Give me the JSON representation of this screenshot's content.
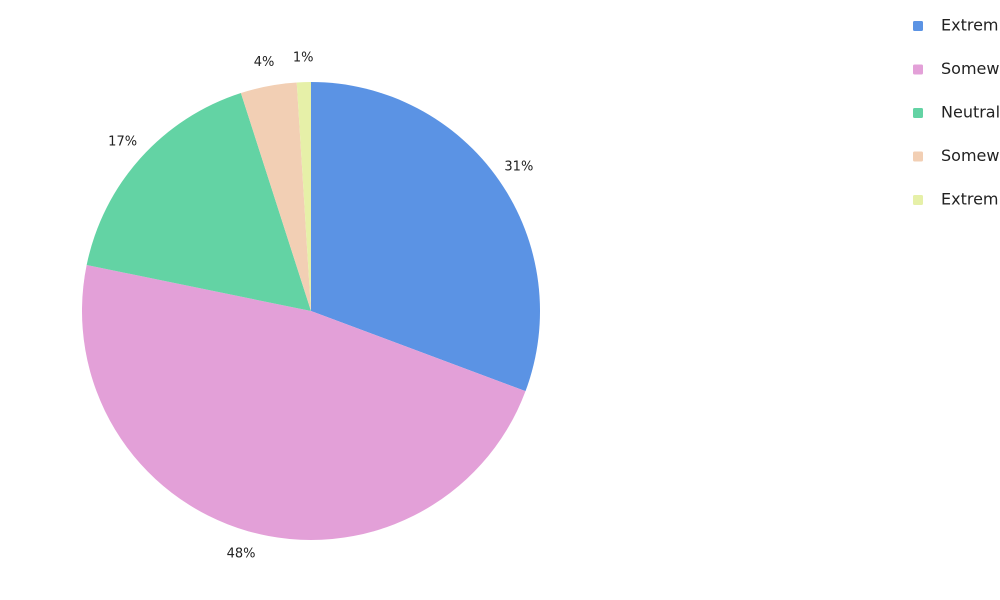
{
  "chart_data": {
    "type": "pie",
    "categories": [
      "Extrem",
      "Somew",
      "Neutral",
      "Somew",
      "Extrem"
    ],
    "values": [
      31,
      48,
      17,
      4,
      1
    ],
    "value_labels": [
      "31%",
      "48%",
      "17%",
      "4%",
      "1%"
    ],
    "colors": [
      "#5b93e4",
      "#e3a0d8",
      "#63d3a4",
      "#f2cfb4",
      "#e6f0a8"
    ],
    "legend": "top-right"
  }
}
